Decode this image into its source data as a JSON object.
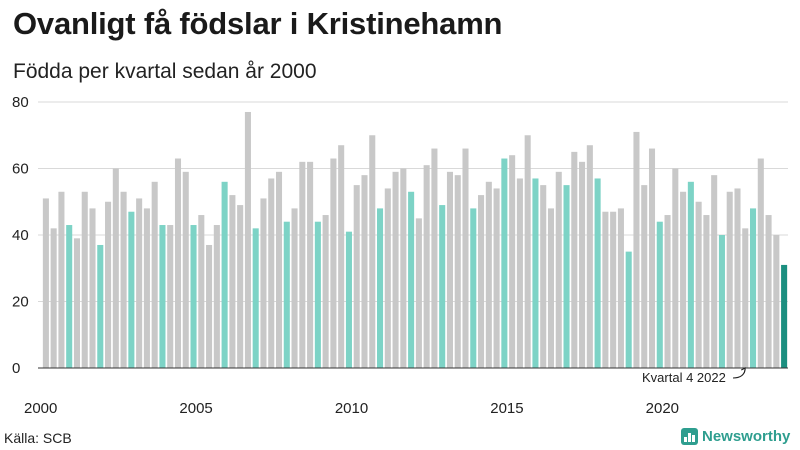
{
  "title": "Ovanligt få födslar i Kristinehamn",
  "subtitle": "Födda per kvartal sedan år 2000",
  "source": "Källa: SCB",
  "brand": {
    "name": "Newsworthy",
    "icon": "bar-chart-icon"
  },
  "colors": {
    "q1": "#c8c8c8",
    "q2": "#c8c8c8",
    "q3": "#c8c8c8",
    "q4": "#7dd3c6",
    "latest": "#1c8f80",
    "grid": "#d9d9d9",
    "axis": "#333333"
  },
  "chart_data": {
    "type": "bar",
    "xlabel": "",
    "ylabel": "",
    "ylim": [
      0,
      80
    ],
    "yticks": [
      0,
      20,
      40,
      60,
      80
    ],
    "x_tick_labels": [
      "2000",
      "2005",
      "2010",
      "2015",
      "2020"
    ],
    "grid": true,
    "start_year": 2000,
    "annotation": "Kvartal 4 2022",
    "values": [
      51,
      42,
      53,
      43,
      39,
      53,
      48,
      37,
      50,
      60,
      53,
      47,
      51,
      48,
      56,
      43,
      43,
      63,
      59,
      43,
      46,
      37,
      43,
      56,
      52,
      49,
      77,
      42,
      51,
      57,
      59,
      44,
      48,
      62,
      62,
      44,
      46,
      63,
      67,
      41,
      55,
      58,
      70,
      48,
      54,
      59,
      60,
      53,
      45,
      61,
      66,
      49,
      59,
      58,
      66,
      48,
      52,
      56,
      54,
      63,
      64,
      57,
      70,
      57,
      55,
      48,
      59,
      55,
      65,
      62,
      67,
      57,
      47,
      47,
      48,
      35,
      71,
      55,
      66,
      44,
      46,
      60,
      53,
      56,
      50,
      46,
      58,
      40,
      53,
      54,
      42,
      48,
      63,
      46,
      40,
      31
    ]
  }
}
